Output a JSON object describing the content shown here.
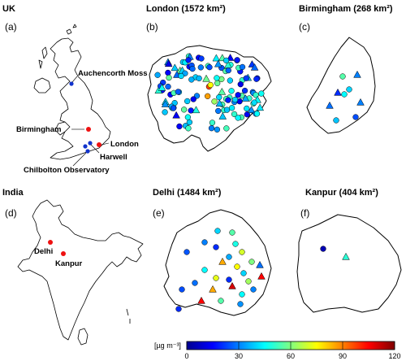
{
  "panels": {
    "uk": {
      "header": "UK",
      "label": "(a)"
    },
    "london": {
      "header": "London (1572 km²)",
      "label": "(b)"
    },
    "birmingham": {
      "header": "Birmingham (268 km²)",
      "label": "(c)"
    },
    "india": {
      "header": "India",
      "label": "(d)"
    },
    "delhi": {
      "header": "Delhi (1484 km²)",
      "label": "(e)"
    },
    "kanpur": {
      "header": "Kanpur (404 km²)",
      "label": "(f)"
    }
  },
  "uk_sites": {
    "auchencorth": "Auchencorth Moss",
    "birmingham": "Birmingham",
    "london": "London",
    "harwell": "Harwell",
    "chilbolton": "Chilbolton Observatory"
  },
  "india_sites": {
    "delhi": "Delhi",
    "kanpur": "Kanpur"
  },
  "colorbar": {
    "unit": "[µg m⁻³]",
    "ticks": [
      "0",
      "30",
      "60",
      "90",
      "120"
    ],
    "min": 0,
    "max": 120,
    "colormap": [
      "#00008f",
      "#0000ff",
      "#0080ff",
      "#00ffff",
      "#80ff80",
      "#ffff00",
      "#ff8000",
      "#ff0000",
      "#800000"
    ]
  },
  "colors": {
    "site_red": "#ee1111",
    "site_blue": "#1133cc"
  }
}
